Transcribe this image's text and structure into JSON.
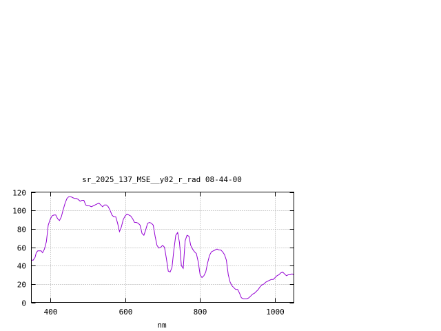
{
  "chart_data": {
    "type": "line",
    "title": "sr_2025_137_MSE__y02_r_rad 08-44-00",
    "xlabel": "nm",
    "ylabel": "",
    "xlim": [
      350,
      1050
    ],
    "ylim": [
      0,
      120
    ],
    "xticks": [
      400,
      600,
      800,
      1000
    ],
    "yticks": [
      0,
      20,
      40,
      60,
      80,
      100,
      120
    ],
    "grid": true,
    "line_color": "#9400d3",
    "series": [
      {
        "x": [
          350,
          355,
          360,
          363,
          367,
          372,
          376,
          380,
          385,
          390,
          395,
          400,
          405,
          410,
          415,
          420,
          425,
          430,
          435,
          440,
          445,
          450,
          455,
          460,
          465,
          470,
          475,
          480,
          485,
          490,
          495,
          500,
          505,
          510,
          515,
          520,
          525,
          530,
          535,
          540,
          545,
          550,
          555,
          560,
          565,
          570,
          575,
          580,
          585,
          590,
          595,
          600,
          605,
          610,
          615,
          620,
          625,
          630,
          635,
          640,
          645,
          650,
          655,
          660,
          665,
          670,
          675,
          680,
          685,
          690,
          695,
          700,
          705,
          710,
          715,
          720,
          725,
          730,
          735,
          740,
          745,
          750,
          755,
          760,
          765,
          770,
          775,
          780,
          785,
          790,
          795,
          800,
          805,
          810,
          815,
          820,
          825,
          830,
          835,
          840,
          845,
          850,
          855,
          860,
          865,
          870,
          875,
          880,
          885,
          890,
          895,
          900,
          905,
          910,
          915,
          920,
          925,
          930,
          935,
          940,
          945,
          950,
          955,
          960,
          965,
          970,
          975,
          980,
          985,
          990,
          995,
          1000,
          1005,
          1010,
          1015,
          1020,
          1025,
          1030,
          1035,
          1040,
          1045,
          1050
        ],
        "y": [
          46,
          46,
          49,
          54,
          56,
          56,
          56,
          54,
          58,
          66,
          84,
          90,
          94,
          95,
          95,
          91,
          89,
          93,
          101,
          108,
          113,
          115,
          115,
          114,
          113,
          113,
          112,
          110,
          111,
          111,
          106,
          105,
          105,
          104,
          105,
          106,
          107,
          108,
          106,
          104,
          106,
          106,
          104,
          100,
          95,
          93,
          93,
          86,
          77,
          82,
          90,
          94,
          96,
          95,
          94,
          91,
          87,
          87,
          86,
          84,
          75,
          73,
          79,
          86,
          87,
          86,
          84,
          72,
          62,
          59,
          60,
          62,
          60,
          48,
          34,
          33,
          38,
          57,
          73,
          76,
          65,
          40,
          37,
          67,
          73,
          72,
          62,
          58,
          55,
          53,
          44,
          30,
          27,
          29,
          33,
          43,
          51,
          55,
          56,
          57,
          58,
          57,
          57,
          55,
          52,
          46,
          30,
          22,
          18,
          16,
          14,
          14,
          10,
          5,
          4,
          4,
          4,
          5,
          7,
          9,
          10,
          12,
          14,
          17,
          19,
          20,
          22,
          23,
          24,
          25,
          25,
          27,
          29,
          30,
          32,
          33,
          31,
          29,
          30,
          30,
          31,
          30
        ]
      }
    ]
  }
}
